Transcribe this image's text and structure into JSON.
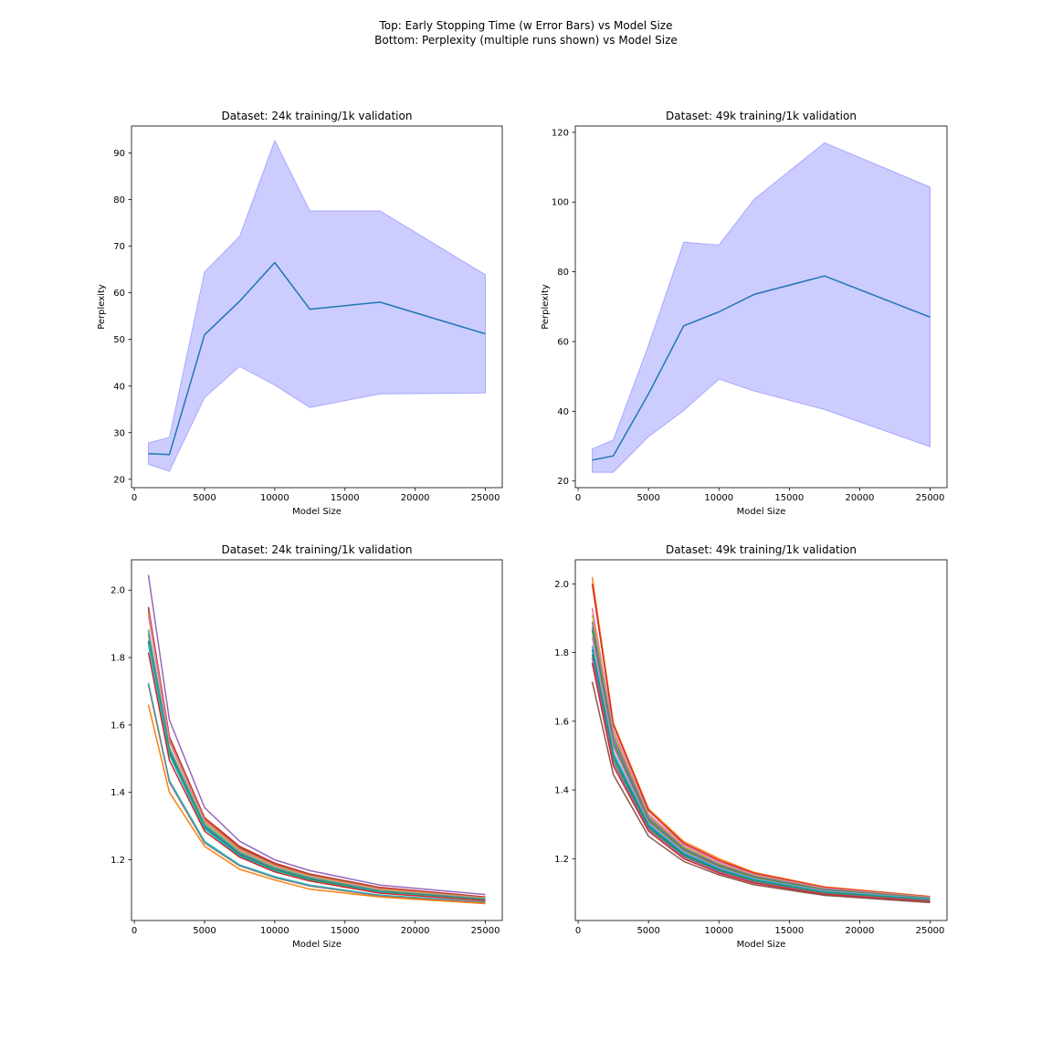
{
  "figure": {
    "suptitle_line1": "Top: Early Stopping Time (w Error Bars) vs Model Size",
    "suptitle_line2": "Bottom: Perplexity (multiple runs shown) vs Model Size"
  },
  "chart_data": [
    {
      "type": "line",
      "title": "Dataset: 24k training/1k validation",
      "xlabel": "Model Size",
      "ylabel": "Perplexity",
      "xlim": [
        -200,
        26200
      ],
      "ylim": [
        18.2,
        95.8
      ],
      "xticks": [
        0,
        5000,
        10000,
        15000,
        20000,
        25000
      ],
      "yticks": [
        20,
        30,
        40,
        50,
        60,
        70,
        80,
        90
      ],
      "x": [
        1000,
        2500,
        5000,
        7500,
        10000,
        12500,
        17500,
        25000
      ],
      "series": [
        {
          "values": [
            25.5,
            25.3,
            51.0,
            58.2,
            66.5,
            56.5,
            58.0,
            51.2
          ],
          "color": "#1f77b4"
        }
      ],
      "band": {
        "lower": [
          23.2,
          21.7,
          37.5,
          44.2,
          40.2,
          35.4,
          38.3,
          38.5
        ],
        "upper": [
          27.8,
          29.0,
          64.5,
          72.1,
          92.7,
          77.6,
          77.6,
          63.9
        ],
        "color": "#0000ff"
      }
    },
    {
      "type": "line",
      "title": "Dataset: 49k training/1k validation",
      "xlabel": "Model Size",
      "ylabel": "Perplexity",
      "xlim": [
        -200,
        26200
      ],
      "ylim": [
        18.1,
        121.8
      ],
      "xticks": [
        0,
        5000,
        10000,
        15000,
        20000,
        25000
      ],
      "yticks": [
        20,
        40,
        60,
        80,
        100,
        120
      ],
      "x": [
        1000,
        2500,
        5000,
        7500,
        10000,
        12500,
        17500,
        25000
      ],
      "series": [
        {
          "values": [
            26.0,
            27.2,
            45.0,
            64.5,
            68.5,
            73.5,
            78.8,
            67.0
          ],
          "color": "#1f77b4"
        }
      ],
      "band": {
        "lower": [
          22.5,
          22.5,
          32.7,
          40.2,
          49.2,
          45.8,
          40.5,
          29.8
        ],
        "upper": [
          29.2,
          31.8,
          59.0,
          88.5,
          87.7,
          100.8,
          117.0,
          104.3
        ],
        "color": "#0000ff"
      }
    },
    {
      "type": "line",
      "title": "Dataset: 24k training/1k validation",
      "xlabel": "Model Size",
      "ylabel": "",
      "xlim": [
        -200,
        26200
      ],
      "ylim": [
        1.02,
        2.09
      ],
      "xticks": [
        0,
        5000,
        10000,
        15000,
        20000,
        25000
      ],
      "yticks": [
        1.2,
        1.4,
        1.6,
        1.8,
        2.0
      ],
      "yticklabels": [
        "1.2",
        "1.4",
        "1.6",
        "1.8",
        "2.0"
      ],
      "x": [
        1000,
        2500,
        5000,
        7500,
        10000,
        12500,
        17500,
        25000
      ],
      "series": [
        {
          "values": [
            2.045,
            1.615,
            1.355,
            1.255,
            1.2,
            1.168,
            1.125,
            1.097
          ],
          "color": "#9467bd"
        },
        {
          "values": [
            1.95,
            1.565,
            1.325,
            1.24,
            1.19,
            1.158,
            1.118,
            1.09
          ],
          "color": "#d62728"
        },
        {
          "values": [
            1.945,
            1.56,
            1.32,
            1.236,
            1.187,
            1.156,
            1.116,
            1.088
          ],
          "color": "#8c564b"
        },
        {
          "values": [
            1.935,
            1.555,
            1.318,
            1.232,
            1.184,
            1.153,
            1.114,
            1.087
          ],
          "color": "#ff7f0e"
        },
        {
          "values": [
            1.925,
            1.55,
            1.315,
            1.229,
            1.182,
            1.151,
            1.112,
            1.086
          ],
          "color": "#e377c2"
        },
        {
          "values": [
            1.885,
            1.535,
            1.31,
            1.225,
            1.179,
            1.149,
            1.11,
            1.085
          ],
          "color": "#bcbd22"
        },
        {
          "values": [
            1.88,
            1.53,
            1.305,
            1.222,
            1.176,
            1.147,
            1.108,
            1.084
          ],
          "color": "#17becf"
        },
        {
          "values": [
            1.87,
            1.525,
            1.3,
            1.219,
            1.174,
            1.145,
            1.107,
            1.083
          ],
          "color": "#7f7f7f"
        },
        {
          "values": [
            1.85,
            1.52,
            1.297,
            1.216,
            1.171,
            1.143,
            1.105,
            1.082
          ],
          "color": "#1f77b4"
        },
        {
          "values": [
            1.845,
            1.515,
            1.294,
            1.213,
            1.169,
            1.141,
            1.104,
            1.081
          ],
          "color": "#2ca02c"
        },
        {
          "values": [
            1.84,
            1.51,
            1.292,
            1.211,
            1.167,
            1.139,
            1.103,
            1.08
          ],
          "color": "#17becf"
        },
        {
          "values": [
            1.815,
            1.495,
            1.285,
            1.208,
            1.164,
            1.137,
            1.101,
            1.079
          ],
          "color": "#d62728"
        },
        {
          "values": [
            1.725,
            1.435,
            1.255,
            1.185,
            1.15,
            1.125,
            1.095,
            1.075
          ],
          "color": "#17becf"
        },
        {
          "values": [
            1.72,
            1.43,
            1.25,
            1.182,
            1.147,
            1.122,
            1.093,
            1.074
          ],
          "color": "#7f7f7f"
        },
        {
          "values": [
            1.66,
            1.4,
            1.24,
            1.172,
            1.14,
            1.113,
            1.09,
            1.07
          ],
          "color": "#ff7f0e"
        }
      ]
    },
    {
      "type": "line",
      "title": "Dataset: 49k training/1k validation",
      "xlabel": "Model Size",
      "ylabel": "",
      "xlim": [
        -200,
        26200
      ],
      "ylim": [
        1.02,
        2.07
      ],
      "xticks": [
        0,
        5000,
        10000,
        15000,
        20000,
        25000
      ],
      "yticks": [
        1.2,
        1.4,
        1.6,
        1.8,
        2.0
      ],
      "yticklabels": [
        "1.2",
        "1.4",
        "1.6",
        "1.8",
        "2.0"
      ],
      "x": [
        1000,
        2500,
        5000,
        7500,
        10000,
        12500,
        17500,
        25000
      ],
      "series": [
        {
          "values": [
            2.02,
            1.595,
            1.345,
            1.25,
            1.2,
            1.16,
            1.118,
            1.09
          ],
          "color": "#ff7f0e"
        },
        {
          "values": [
            2.0,
            1.59,
            1.34,
            1.245,
            1.195,
            1.157,
            1.116,
            1.089
          ],
          "color": "#d62728"
        },
        {
          "values": [
            1.93,
            1.575,
            1.33,
            1.24,
            1.19,
            1.154,
            1.114,
            1.088
          ],
          "color": "#e377c2"
        },
        {
          "values": [
            1.91,
            1.565,
            1.325,
            1.235,
            1.186,
            1.151,
            1.112,
            1.087
          ],
          "color": "#bcbd22"
        },
        {
          "values": [
            1.89,
            1.555,
            1.32,
            1.231,
            1.183,
            1.149,
            1.111,
            1.086
          ],
          "color": "#9467bd"
        },
        {
          "values": [
            1.875,
            1.545,
            1.315,
            1.228,
            1.18,
            1.147,
            1.109,
            1.085
          ],
          "color": "#7f7f7f"
        },
        {
          "values": [
            1.865,
            1.535,
            1.31,
            1.225,
            1.177,
            1.145,
            1.108,
            1.084
          ],
          "color": "#2ca02c"
        },
        {
          "values": [
            1.845,
            1.525,
            1.305,
            1.221,
            1.174,
            1.142,
            1.106,
            1.083
          ],
          "color": "#e377c2"
        },
        {
          "values": [
            1.82,
            1.51,
            1.3,
            1.217,
            1.171,
            1.14,
            1.104,
            1.082
          ],
          "color": "#17becf"
        },
        {
          "values": [
            1.81,
            1.5,
            1.295,
            1.213,
            1.168,
            1.137,
            1.102,
            1.08
          ],
          "color": "#1f77b4"
        },
        {
          "values": [
            1.795,
            1.49,
            1.29,
            1.209,
            1.165,
            1.135,
            1.1,
            1.079
          ],
          "color": "#2ca02c"
        },
        {
          "values": [
            1.785,
            1.48,
            1.285,
            1.205,
            1.162,
            1.132,
            1.098,
            1.077
          ],
          "color": "#9467bd"
        },
        {
          "values": [
            1.77,
            1.47,
            1.28,
            1.2,
            1.158,
            1.129,
            1.096,
            1.075
          ],
          "color": "#d62728"
        },
        {
          "values": [
            1.715,
            1.445,
            1.265,
            1.192,
            1.153,
            1.124,
            1.093,
            1.072
          ],
          "color": "#8c564b"
        }
      ]
    }
  ]
}
